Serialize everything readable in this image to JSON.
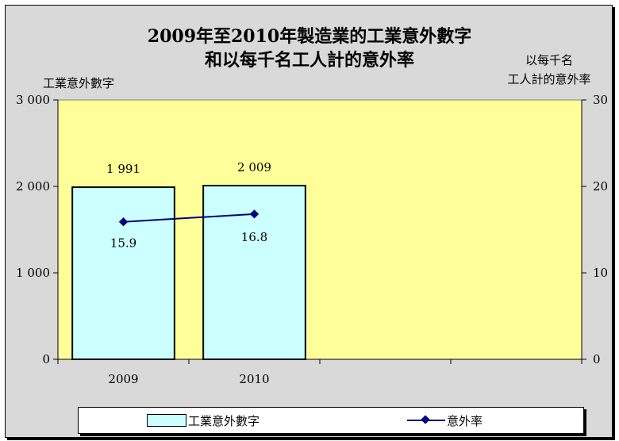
{
  "chart_data": {
    "type": "bar",
    "title_line1": "2009年至2010年製造業的工業意外數字",
    "title_line2": "和以每千名工人計的意外率",
    "ylabel_left": "工業意外數字",
    "ylabel_right_line1": "以每千名",
    "ylabel_right_line2": "工人計的意外率",
    "categories": [
      "2009",
      "2010"
    ],
    "category_slots": 4,
    "series": [
      {
        "name": "工業意外數字",
        "kind": "bar",
        "axis": "left",
        "values": [
          1991,
          2009
        ],
        "labels": [
          "1 991",
          "2 009"
        ],
        "color": "#ccffff"
      },
      {
        "name": "意外率",
        "kind": "line",
        "axis": "right",
        "values": [
          15.9,
          16.8
        ],
        "labels": [
          "15.9",
          "16.8"
        ],
        "color": "#000080"
      }
    ],
    "ylim_left": [
      0,
      3000
    ],
    "yticks_left": [
      "0",
      "1 000",
      "2 000",
      "3 000"
    ],
    "ylim_right": [
      0,
      30
    ],
    "yticks_right": [
      "0",
      "10",
      "20",
      "30"
    ],
    "plot_background": "#ffff99",
    "grid": false,
    "legend_position": "bottom"
  }
}
